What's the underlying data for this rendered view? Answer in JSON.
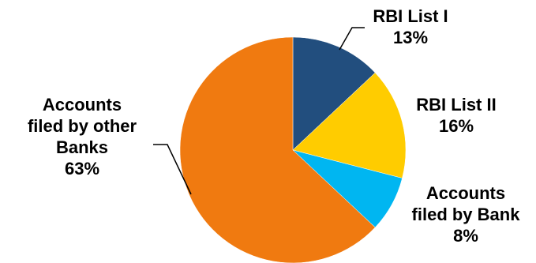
{
  "chart_data": {
    "type": "pie",
    "start_angle_deg": 0,
    "direction": "clockwise",
    "slices": [
      {
        "label_lines": [
          "RBI List I"
        ],
        "value": 13,
        "value_label": "13%",
        "color": "#224E7E"
      },
      {
        "label_lines": [
          "RBI List II"
        ],
        "value": 16,
        "value_label": "16%",
        "color": "#FFCC00"
      },
      {
        "label_lines": [
          "Accounts",
          "filed by Bank"
        ],
        "value": 8,
        "value_label": "8%",
        "color": "#00B6F1"
      },
      {
        "label_lines": [
          "Accounts",
          "filed by other",
          "Banks"
        ],
        "value": 63,
        "value_label": "63%",
        "color": "#F07A10"
      }
    ]
  }
}
